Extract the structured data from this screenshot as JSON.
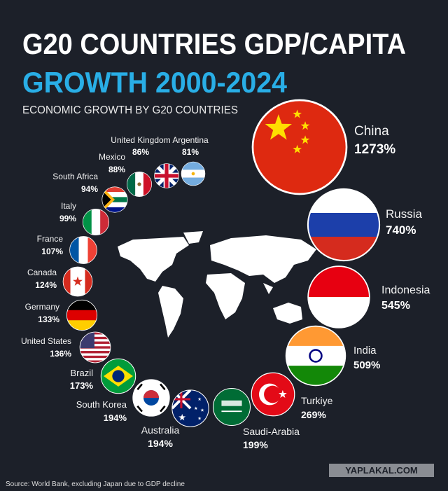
{
  "chart_data": {
    "type": "bubble",
    "title": "G20 COUNTRIES GDP/CAPITA",
    "title_highlight": "GROWTH 2000-2024",
    "subtitle": "ECONOMIC GROWTH BY G20 COUNTRIES",
    "categories": [
      "China",
      "Russia",
      "Indonesia",
      "India",
      "Turkiye",
      "Saudi-Arabia",
      "Australia",
      "South Korea",
      "Brazil",
      "United States",
      "Germany",
      "Canada",
      "France",
      "Italy",
      "South Africa",
      "Mexico",
      "United Kingdom",
      "Argentina"
    ],
    "values": [
      1273,
      740,
      545,
      509,
      269,
      199,
      194,
      194,
      173,
      136,
      133,
      124,
      107,
      99,
      94,
      88,
      86,
      81
    ],
    "value_labels": [
      "1273%",
      "740%",
      "545%",
      "509%",
      "269%",
      "199%",
      "194%",
      "194%",
      "173%",
      "136%",
      "133%",
      "124%",
      "107%",
      "99%",
      "94%",
      "88%",
      "86%",
      "81%"
    ],
    "source": "Source: World Bank, excluding Japan due to GDP decline",
    "watermark": "YAPLAKAL.COM"
  }
}
